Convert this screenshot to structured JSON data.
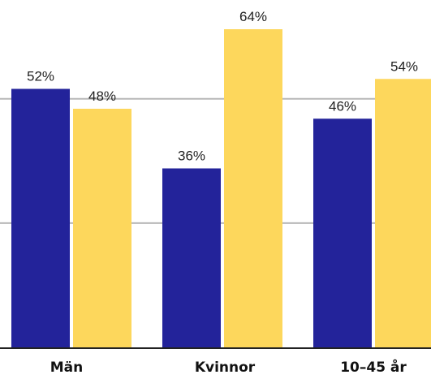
{
  "chart_data": {
    "type": "bar",
    "categories": [
      "Män",
      "Kvinnor",
      "10–45 år"
    ],
    "series": [
      {
        "values": [
          52,
          36,
          46
        ],
        "labels": [
          "52%",
          "36%",
          "46%"
        ]
      },
      {
        "values": [
          48,
          64,
          54
        ],
        "labels": [
          "48%",
          "64%",
          "54%"
        ]
      }
    ],
    "ylim": [
      0,
      70
    ],
    "grid": true,
    "gridlines": [
      50,
      25
    ],
    "legend": "none",
    "title": "",
    "xlabel": "",
    "ylabel": ""
  },
  "colors": {
    "series": [
      "#23239a",
      "#fdd75c"
    ],
    "grid": "#b8b8b8",
    "baseline": "#222222"
  }
}
